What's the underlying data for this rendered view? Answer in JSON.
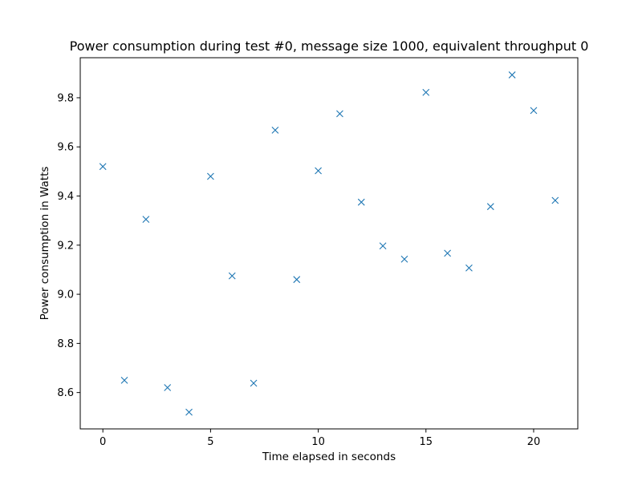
{
  "chart_data": {
    "type": "scatter",
    "title": "Power consumption during test #0, message size 1000, equivalent throughput 0",
    "xlabel": "Time elapsed in seconds",
    "ylabel": "Power consumption in Watts",
    "xlim": [
      -1.05,
      22.05
    ],
    "ylim": [
      8.452,
      9.963
    ],
    "xticks": [
      0,
      5,
      10,
      15,
      20
    ],
    "yticks": [
      8.6,
      8.8,
      9.0,
      9.2,
      9.4,
      9.6,
      9.8
    ],
    "xtick_labels": [
      "0",
      "5",
      "10",
      "15",
      "20"
    ],
    "ytick_labels": [
      "8.6",
      "8.8",
      "9.0",
      "9.2",
      "9.4",
      "9.6",
      "9.8"
    ],
    "marker": "x",
    "grid": false,
    "color": "#1f77b4",
    "series": [
      {
        "x": [
          0,
          1,
          2,
          3,
          4,
          5,
          6,
          7,
          8,
          9,
          10,
          11,
          12,
          13,
          14,
          15,
          16,
          17,
          18,
          19,
          20,
          21
        ],
        "y": [
          9.52,
          8.65,
          9.305,
          8.62,
          8.52,
          9.48,
          9.075,
          8.638,
          9.668,
          9.06,
          9.503,
          9.735,
          9.375,
          9.197,
          9.143,
          9.822,
          9.167,
          9.107,
          9.357,
          9.893,
          9.748,
          9.382
        ]
      }
    ]
  }
}
